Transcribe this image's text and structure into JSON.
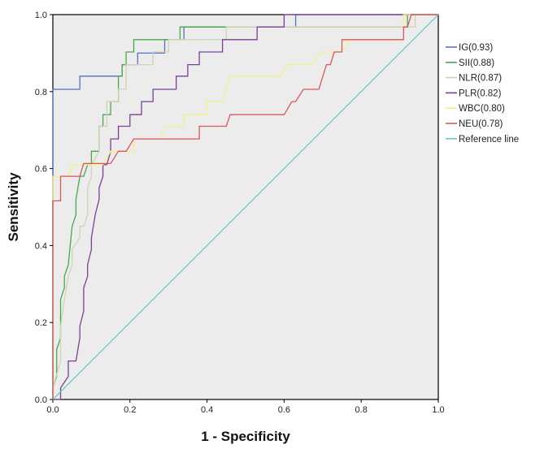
{
  "chart_data": {
    "type": "line",
    "title": "",
    "xlabel": "1 - Specificity",
    "ylabel": "Sensitivity",
    "xlim": [
      0.0,
      1.0
    ],
    "ylim": [
      0.0,
      1.0
    ],
    "x_ticks": [
      "0.0",
      "0.2",
      "0.4",
      "0.6",
      "0.8",
      "1.0"
    ],
    "y_ticks": [
      "0.0",
      "0.2",
      "0.4",
      "0.6",
      "0.8",
      "1.0"
    ],
    "legend_position": "right",
    "grid": false,
    "series": [
      {
        "name": "IG(0.93)",
        "color": "#5b6fc4",
        "points": [
          [
            0,
            0
          ],
          [
            0,
            0.806
          ],
          [
            0.07,
            0.806
          ],
          [
            0.07,
            0.84
          ],
          [
            0.18,
            0.84
          ],
          [
            0.18,
            0.87
          ],
          [
            0.22,
            0.87
          ],
          [
            0.22,
            0.9
          ],
          [
            0.29,
            0.9
          ],
          [
            0.29,
            0.935
          ],
          [
            0.34,
            0.935
          ],
          [
            0.34,
            0.968
          ],
          [
            0.63,
            0.968
          ],
          [
            0.63,
            1.0
          ],
          [
            1.0,
            1.0
          ]
        ]
      },
      {
        "name": "SII(0.88)",
        "color": "#4aa84a",
        "points": [
          [
            0,
            0
          ],
          [
            0,
            0.03
          ],
          [
            0.01,
            0.06
          ],
          [
            0.01,
            0.13
          ],
          [
            0.02,
            0.16
          ],
          [
            0.02,
            0.26
          ],
          [
            0.03,
            0.29
          ],
          [
            0.03,
            0.32
          ],
          [
            0.04,
            0.35
          ],
          [
            0.05,
            0.45
          ],
          [
            0.06,
            0.48
          ],
          [
            0.06,
            0.52
          ],
          [
            0.07,
            0.58
          ],
          [
            0.08,
            0.58
          ],
          [
            0.09,
            0.61
          ],
          [
            0.1,
            0.61
          ],
          [
            0.1,
            0.645
          ],
          [
            0.12,
            0.645
          ],
          [
            0.12,
            0.71
          ],
          [
            0.13,
            0.71
          ],
          [
            0.13,
            0.74
          ],
          [
            0.15,
            0.74
          ],
          [
            0.15,
            0.774
          ],
          [
            0.17,
            0.774
          ],
          [
            0.17,
            0.84
          ],
          [
            0.18,
            0.84
          ],
          [
            0.18,
            0.87
          ],
          [
            0.19,
            0.87
          ],
          [
            0.19,
            0.903
          ],
          [
            0.21,
            0.903
          ],
          [
            0.21,
            0.935
          ],
          [
            0.33,
            0.935
          ],
          [
            0.33,
            0.968
          ],
          [
            0.92,
            0.968
          ],
          [
            0.92,
            1.0
          ],
          [
            1.0,
            1.0
          ]
        ]
      },
      {
        "name": "NLR(0.87)",
        "color": "#cfd4b2",
        "points": [
          [
            0,
            0
          ],
          [
            0,
            0.03
          ],
          [
            0.02,
            0.1
          ],
          [
            0.02,
            0.19
          ],
          [
            0.03,
            0.26
          ],
          [
            0.04,
            0.32
          ],
          [
            0.05,
            0.35
          ],
          [
            0.05,
            0.39
          ],
          [
            0.07,
            0.42
          ],
          [
            0.07,
            0.45
          ],
          [
            0.08,
            0.45
          ],
          [
            0.09,
            0.48
          ],
          [
            0.09,
            0.55
          ],
          [
            0.1,
            0.58
          ],
          [
            0.1,
            0.61
          ],
          [
            0.12,
            0.645
          ],
          [
            0.12,
            0.71
          ],
          [
            0.14,
            0.71
          ],
          [
            0.14,
            0.774
          ],
          [
            0.17,
            0.774
          ],
          [
            0.17,
            0.806
          ],
          [
            0.19,
            0.806
          ],
          [
            0.19,
            0.87
          ],
          [
            0.26,
            0.87
          ],
          [
            0.26,
            0.903
          ],
          [
            0.3,
            0.903
          ],
          [
            0.3,
            0.935
          ],
          [
            0.45,
            0.935
          ],
          [
            0.45,
            0.968
          ],
          [
            0.94,
            0.968
          ],
          [
            0.94,
            1.0
          ],
          [
            1.0,
            1.0
          ]
        ]
      },
      {
        "name": "PLR(0.82)",
        "color": "#7b3f96",
        "points": [
          [
            0,
            0
          ],
          [
            0.02,
            0
          ],
          [
            0.02,
            0.03
          ],
          [
            0.04,
            0.06
          ],
          [
            0.04,
            0.1
          ],
          [
            0.06,
            0.1
          ],
          [
            0.07,
            0.16
          ],
          [
            0.07,
            0.19
          ],
          [
            0.08,
            0.23
          ],
          [
            0.08,
            0.29
          ],
          [
            0.09,
            0.32
          ],
          [
            0.09,
            0.35
          ],
          [
            0.1,
            0.39
          ],
          [
            0.1,
            0.42
          ],
          [
            0.11,
            0.48
          ],
          [
            0.12,
            0.52
          ],
          [
            0.12,
            0.55
          ],
          [
            0.13,
            0.58
          ],
          [
            0.13,
            0.61
          ],
          [
            0.14,
            0.61
          ],
          [
            0.15,
            0.645
          ],
          [
            0.15,
            0.677
          ],
          [
            0.17,
            0.677
          ],
          [
            0.17,
            0.71
          ],
          [
            0.2,
            0.71
          ],
          [
            0.2,
            0.74
          ],
          [
            0.23,
            0.74
          ],
          [
            0.23,
            0.774
          ],
          [
            0.26,
            0.774
          ],
          [
            0.26,
            0.806
          ],
          [
            0.32,
            0.806
          ],
          [
            0.32,
            0.84
          ],
          [
            0.35,
            0.84
          ],
          [
            0.35,
            0.87
          ],
          [
            0.38,
            0.87
          ],
          [
            0.38,
            0.903
          ],
          [
            0.44,
            0.903
          ],
          [
            0.44,
            0.935
          ],
          [
            0.53,
            0.935
          ],
          [
            0.53,
            0.968
          ],
          [
            0.6,
            0.968
          ],
          [
            0.6,
            1.0
          ],
          [
            1.0,
            1.0
          ]
        ]
      },
      {
        "name": "WBC(0.80)",
        "color": "#f2f284",
        "points": [
          [
            0,
            0
          ],
          [
            0,
            0.58
          ],
          [
            0.04,
            0.58
          ],
          [
            0.05,
            0.61
          ],
          [
            0.13,
            0.61
          ],
          [
            0.15,
            0.645
          ],
          [
            0.21,
            0.645
          ],
          [
            0.21,
            0.677
          ],
          [
            0.28,
            0.677
          ],
          [
            0.29,
            0.71
          ],
          [
            0.34,
            0.71
          ],
          [
            0.34,
            0.74
          ],
          [
            0.4,
            0.74
          ],
          [
            0.4,
            0.774
          ],
          [
            0.44,
            0.774
          ],
          [
            0.46,
            0.84
          ],
          [
            0.59,
            0.84
          ],
          [
            0.61,
            0.87
          ],
          [
            0.67,
            0.87
          ],
          [
            0.7,
            0.903
          ],
          [
            0.75,
            0.903
          ],
          [
            0.77,
            0.935
          ],
          [
            0.91,
            0.935
          ],
          [
            0.91,
            1.0
          ],
          [
            1.0,
            1.0
          ]
        ]
      },
      {
        "name": "NEU(0.78)",
        "color": "#d9575c",
        "points": [
          [
            0,
            0
          ],
          [
            0,
            0.516
          ],
          [
            0.02,
            0.516
          ],
          [
            0.02,
            0.58
          ],
          [
            0.07,
            0.58
          ],
          [
            0.08,
            0.613
          ],
          [
            0.15,
            0.613
          ],
          [
            0.17,
            0.645
          ],
          [
            0.19,
            0.645
          ],
          [
            0.21,
            0.677
          ],
          [
            0.38,
            0.677
          ],
          [
            0.38,
            0.71
          ],
          [
            0.45,
            0.71
          ],
          [
            0.46,
            0.74
          ],
          [
            0.6,
            0.74
          ],
          [
            0.62,
            0.774
          ],
          [
            0.63,
            0.774
          ],
          [
            0.65,
            0.806
          ],
          [
            0.69,
            0.806
          ],
          [
            0.71,
            0.87
          ],
          [
            0.72,
            0.87
          ],
          [
            0.73,
            0.903
          ],
          [
            0.75,
            0.903
          ],
          [
            0.75,
            0.935
          ],
          [
            0.91,
            0.935
          ],
          [
            0.91,
            0.968
          ],
          [
            0.92,
            0.968
          ],
          [
            0.93,
            1.0
          ],
          [
            1.0,
            1.0
          ]
        ]
      },
      {
        "name": "Reference line",
        "color": "#6fc7c7",
        "points": [
          [
            0,
            0
          ],
          [
            1,
            1
          ]
        ]
      }
    ]
  }
}
